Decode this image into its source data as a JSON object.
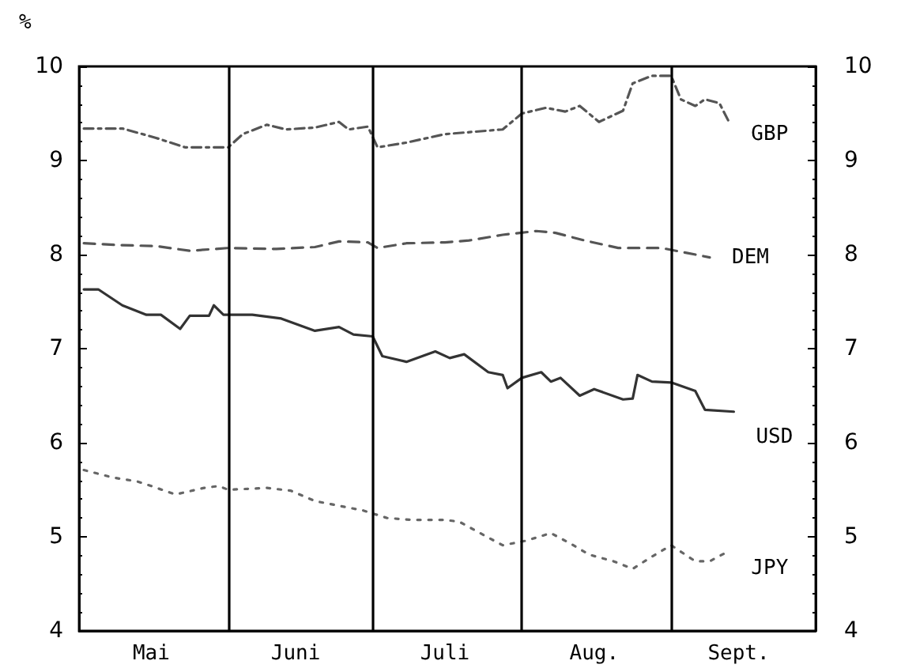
{
  "chart_data": {
    "type": "line",
    "ylabel": "%",
    "xlim": [
      "--05-01",
      "--10-01"
    ],
    "xticks": [
      {
        "value": "--05-16",
        "label": "Mai"
      },
      {
        "value": "--06-15",
        "label": "Juni"
      },
      {
        "value": "--07-16",
        "label": "Juli"
      },
      {
        "value": "--08-16",
        "label": "Aug."
      },
      {
        "value": "--09-15",
        "label": "Sept."
      }
    ],
    "ylim": [
      4,
      10
    ],
    "yticks": [
      4,
      5,
      6,
      7,
      8,
      9,
      10
    ],
    "y2lim": [
      4,
      10
    ],
    "y2ticks": [
      4,
      5,
      6,
      7,
      8,
      9,
      10
    ],
    "grid": false,
    "legend": false,
    "marker": "none",
    "ref_lines": [
      {
        "axis": "x",
        "value": "--06-01",
        "color": "#000000"
      },
      {
        "axis": "x",
        "value": "--07-01",
        "color": "#000000"
      },
      {
        "axis": "x",
        "value": "--08-01",
        "color": "#000000"
      },
      {
        "axis": "x",
        "value": "--09-01",
        "color": "#000000"
      }
    ],
    "series": [
      {
        "name": "GBP",
        "color": "#555555",
        "line_style": "dashdot",
        "x": [
          "--05-02",
          "--05-10",
          "--05-17",
          "--05-23",
          "--06-01",
          "--06-04",
          "--06-09",
          "--06-13",
          "--06-19",
          "--06-24",
          "--06-26",
          "--06-30",
          "--07-02",
          "--07-08",
          "--07-16",
          "--07-28",
          "--08-01",
          "--08-06",
          "--08-10",
          "--08-13",
          "--08-17",
          "--08-22",
          "--08-24",
          "--08-28",
          "--09-01",
          "--09-03",
          "--09-06",
          "--09-08",
          "--09-11",
          "--09-13"
        ],
        "values": [
          9.34,
          9.34,
          9.24,
          9.14,
          9.14,
          9.28,
          9.38,
          9.33,
          9.35,
          9.41,
          9.33,
          9.36,
          9.14,
          9.19,
          9.28,
          9.33,
          9.5,
          9.56,
          9.52,
          9.58,
          9.41,
          9.53,
          9.82,
          9.9,
          9.9,
          9.65,
          9.58,
          9.65,
          9.61,
          9.41
        ]
      },
      {
        "name": "DEM",
        "color": "#555555",
        "line_style": "dashed",
        "x": [
          "--05-02",
          "--05-10",
          "--05-17",
          "--05-24",
          "--06-01",
          "--06-11",
          "--06-19",
          "--06-24",
          "--06-30",
          "--07-02",
          "--07-08",
          "--07-16",
          "--07-21",
          "--07-28",
          "--08-04",
          "--08-08",
          "--08-14",
          "--08-21",
          "--08-30",
          "--09-04",
          "--09-09"
        ],
        "values": [
          8.12,
          8.1,
          8.09,
          8.04,
          8.07,
          8.06,
          8.08,
          8.14,
          8.13,
          8.07,
          8.12,
          8.13,
          8.15,
          8.21,
          8.25,
          8.23,
          8.15,
          8.07,
          8.07,
          8.02,
          7.97
        ]
      },
      {
        "name": "USD",
        "color": "#333333",
        "line_style": "solid",
        "x": [
          "--05-02",
          "--05-05",
          "--05-10",
          "--05-15",
          "--05-18",
          "--05-22",
          "--05-24",
          "--05-28",
          "--05-29",
          "--05-31",
          "--06-06",
          "--06-12",
          "--06-19",
          "--06-24",
          "--06-27",
          "--07-01",
          "--07-03",
          "--07-08",
          "--07-14",
          "--07-17",
          "--07-20",
          "--07-25",
          "--07-28",
          "--07-29",
          "--08-01",
          "--08-05",
          "--08-07",
          "--08-09",
          "--08-13",
          "--08-16",
          "--08-22",
          "--08-24",
          "--08-25",
          "--08-28",
          "--09-01",
          "--09-06",
          "--09-08",
          "--09-14"
        ],
        "values": [
          7.63,
          7.63,
          7.46,
          7.36,
          7.36,
          7.21,
          7.35,
          7.35,
          7.46,
          7.36,
          7.36,
          7.32,
          7.19,
          7.23,
          7.15,
          7.13,
          6.92,
          6.86,
          6.97,
          6.9,
          6.94,
          6.75,
          6.72,
          6.58,
          6.69,
          6.75,
          6.65,
          6.69,
          6.5,
          6.57,
          6.46,
          6.47,
          6.72,
          6.65,
          6.64,
          6.55,
          6.35,
          6.33
        ]
      },
      {
        "name": "JPY",
        "color": "#666666",
        "line_style": "dotted",
        "x": [
          "--05-02",
          "--05-08",
          "--05-13",
          "--05-16",
          "--05-21",
          "--05-27",
          "--05-30",
          "--06-01",
          "--06-09",
          "--06-14",
          "--06-19",
          "--06-24",
          "--06-29",
          "--07-04",
          "--07-09",
          "--07-16",
          "--07-19",
          "--07-24",
          "--07-28",
          "--08-02",
          "--08-07",
          "--08-11",
          "--08-15",
          "--08-20",
          "--08-24",
          "--08-28",
          "--09-01",
          "--09-06",
          "--09-09",
          "--09-13"
        ],
        "values": [
          5.71,
          5.63,
          5.59,
          5.54,
          5.45,
          5.52,
          5.54,
          5.5,
          5.52,
          5.49,
          5.38,
          5.33,
          5.28,
          5.2,
          5.18,
          5.18,
          5.16,
          5.02,
          4.91,
          4.96,
          5.04,
          4.93,
          4.81,
          4.74,
          4.66,
          4.79,
          4.91,
          4.74,
          4.74,
          4.85
        ]
      }
    ]
  }
}
